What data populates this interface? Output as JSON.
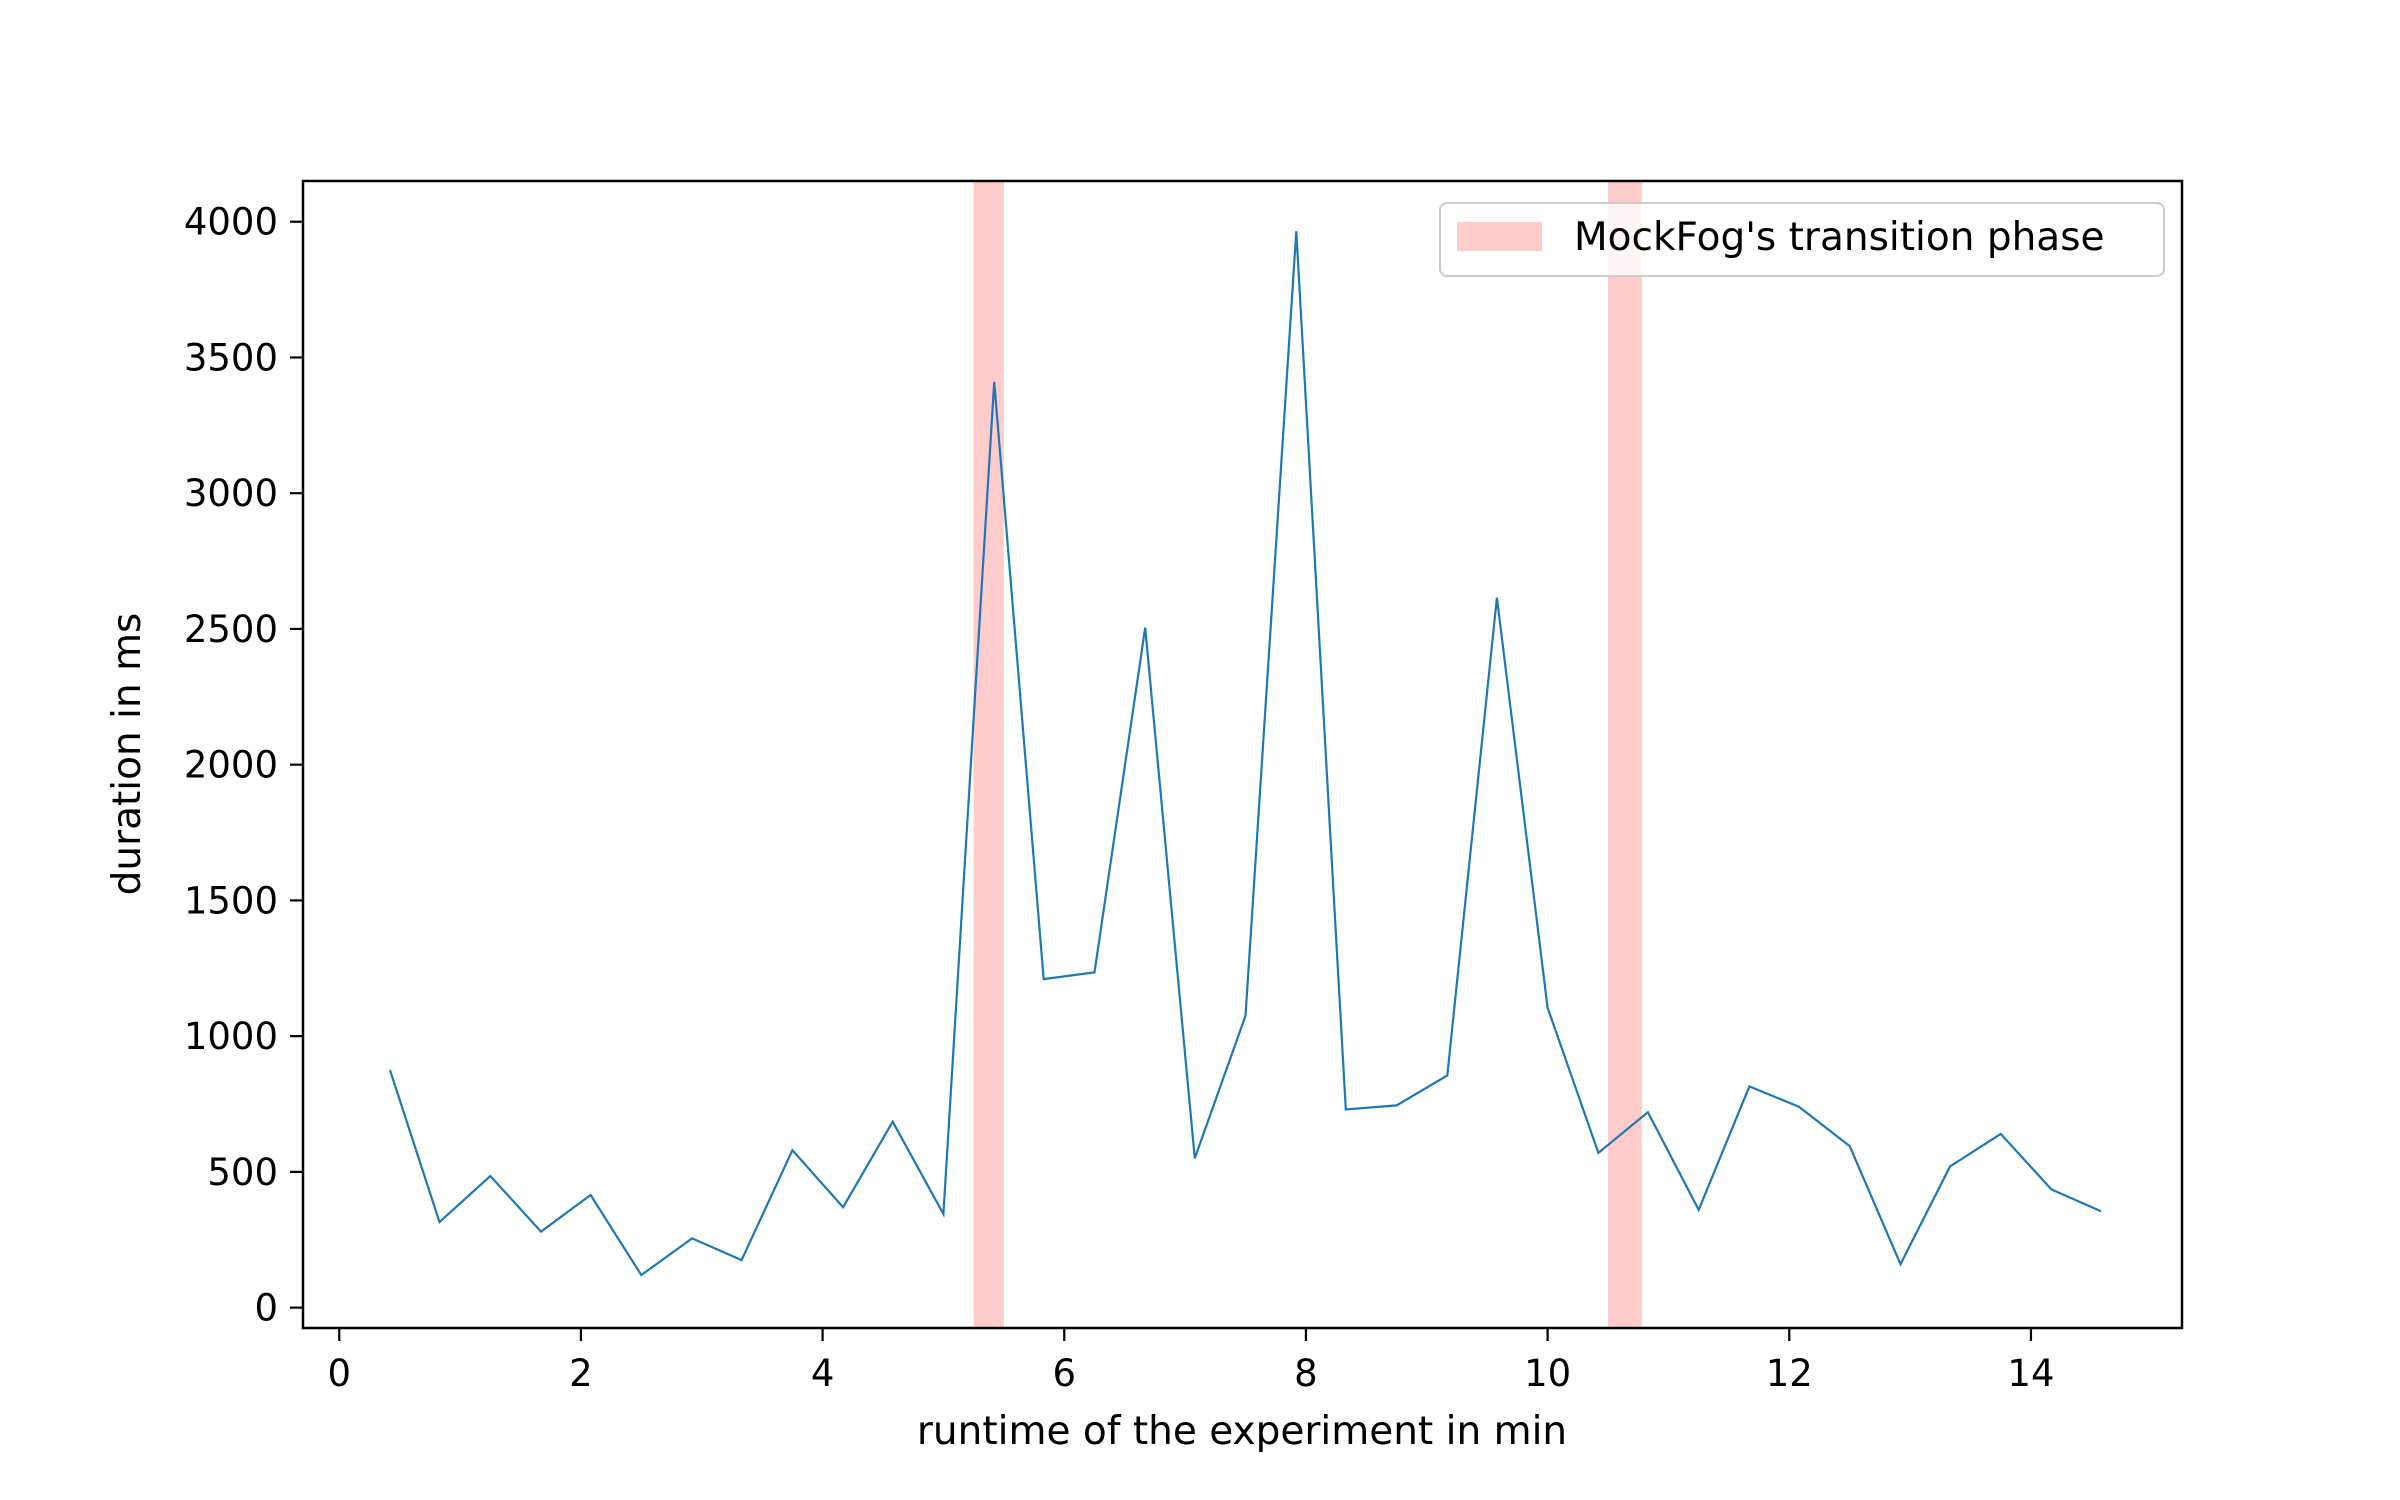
{
  "chart_data": {
    "type": "line",
    "xlabel": "runtime of the experiment in min",
    "ylabel": "duration in ms",
    "xlim": [
      -0.3,
      15.25
    ],
    "ylim": [
      -75,
      4150
    ],
    "xticks": [
      0,
      2,
      4,
      6,
      8,
      10,
      12,
      14
    ],
    "yticks": [
      0,
      500,
      1000,
      1500,
      2000,
      2500,
      3000,
      3500,
      4000
    ],
    "grid": false,
    "legend_position": "top-right",
    "series": [
      {
        "color": "#1f77b4",
        "x": [
          0.42,
          0.83,
          1.25,
          1.67,
          2.08,
          2.5,
          2.92,
          3.33,
          3.75,
          4.17,
          4.58,
          5.0,
          5.42,
          5.83,
          6.25,
          6.67,
          7.08,
          7.5,
          7.92,
          8.33,
          8.75,
          9.17,
          9.58,
          10.0,
          10.42,
          10.83,
          11.25,
          11.67,
          12.08,
          12.5,
          12.92,
          13.33,
          13.75,
          14.17,
          14.58
        ],
        "y": [
          875,
          315,
          485,
          280,
          415,
          120,
          255,
          175,
          580,
          370,
          685,
          345,
          3410,
          1210,
          1235,
          2505,
          550,
          1075,
          3965,
          730,
          745,
          855,
          2615,
          1105,
          570,
          720,
          360,
          815,
          740,
          595,
          160,
          520,
          640,
          435,
          355
        ]
      }
    ],
    "spans": [
      {
        "name": "MockFog's transition phase",
        "x_start": 5.25,
        "x_end": 5.5,
        "color": "#ffcccc"
      },
      {
        "name": "MockFog's transition phase",
        "x_start": 10.5,
        "x_end": 10.78,
        "color": "#ffcccc"
      }
    ],
    "legend": [
      {
        "label": "MockFog's transition phase",
        "color": "#ffcccc"
      }
    ]
  }
}
